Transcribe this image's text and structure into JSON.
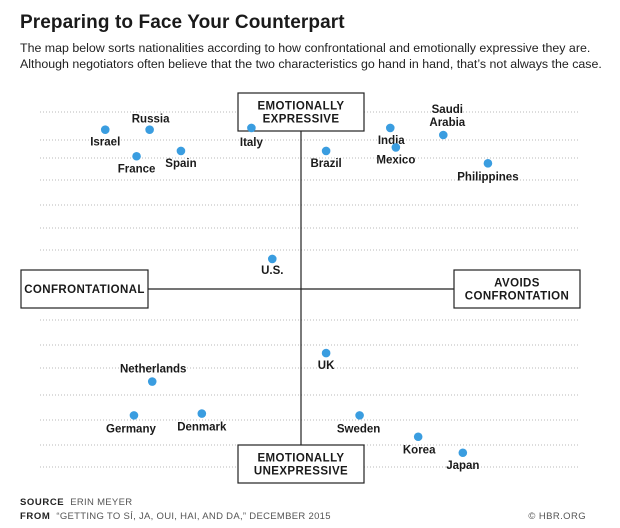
{
  "title": "Preparing to Face Your Counterpart",
  "subtitle": [
    "The map below sorts nationalities according to how confrontational and emotionally expressive they are.",
    "Although negotiators often believe that the two characteristics go hand in hand, that’s not always the case."
  ],
  "chart_data": {
    "type": "scatter",
    "axes": {
      "x": {
        "negative_label": "CONFRONTATIONAL",
        "positive_label": [
          "AVOIDS",
          "CONFRONTATION"
        ],
        "range": [
          -10,
          10
        ]
      },
      "y": {
        "positive_label": [
          "EMOTIONALLY",
          "EXPRESSIVE"
        ],
        "negative_label": [
          "EMOTIONALLY",
          "UNEXPRESSIVE"
        ],
        "range": [
          -10,
          10
        ]
      }
    },
    "grid": true,
    "point_color": "#3a9de0",
    "points": [
      {
        "label": [
          "Israel"
        ],
        "x": -7.5,
        "y": 9.0
      },
      {
        "label": [
          "Russia"
        ],
        "x": -5.8,
        "y": 9.0
      },
      {
        "label": [
          "France"
        ],
        "x": -6.3,
        "y": 7.5
      },
      {
        "label": [
          "Spain"
        ],
        "x": -4.6,
        "y": 7.8
      },
      {
        "label": [
          "Italy"
        ],
        "x": -1.9,
        "y": 9.1
      },
      {
        "label": [
          "U.S."
        ],
        "x": -1.1,
        "y": 1.7
      },
      {
        "label": [
          "Brazil"
        ],
        "x": 0.9,
        "y": 7.8
      },
      {
        "label": [
          "India"
        ],
        "x": 3.2,
        "y": 9.1
      },
      {
        "label": [
          "Mexico"
        ],
        "x": 3.4,
        "y": 8.0
      },
      {
        "label": [
          "Saudi",
          "Arabia"
        ],
        "x": 5.1,
        "y": 8.7
      },
      {
        "label": [
          "Philippines"
        ],
        "x": 6.7,
        "y": 7.1
      },
      {
        "label": [
          "Netherlands"
        ],
        "x": -5.7,
        "y": -5.2
      },
      {
        "label": [
          "Germany"
        ],
        "x": -6.4,
        "y": -7.1
      },
      {
        "label": [
          "Denmark"
        ],
        "x": -3.8,
        "y": -7.0
      },
      {
        "label": [
          "UK"
        ],
        "x": 0.9,
        "y": -3.6
      },
      {
        "label": [
          "Sweden"
        ],
        "x": 2.1,
        "y": -7.1
      },
      {
        "label": [
          "Korea"
        ],
        "x": 4.2,
        "y": -8.3
      },
      {
        "label": [
          "Japan"
        ],
        "x": 5.8,
        "y": -9.2
      }
    ]
  },
  "footer": {
    "source_label": "SOURCE",
    "source": "ERIN MEYER",
    "from_label": "FROM",
    "from": "“GETTING TO SÍ, JA, OUI, HAI, AND DA,” DECEMBER 2015",
    "credit": "© HBR.ORG"
  }
}
